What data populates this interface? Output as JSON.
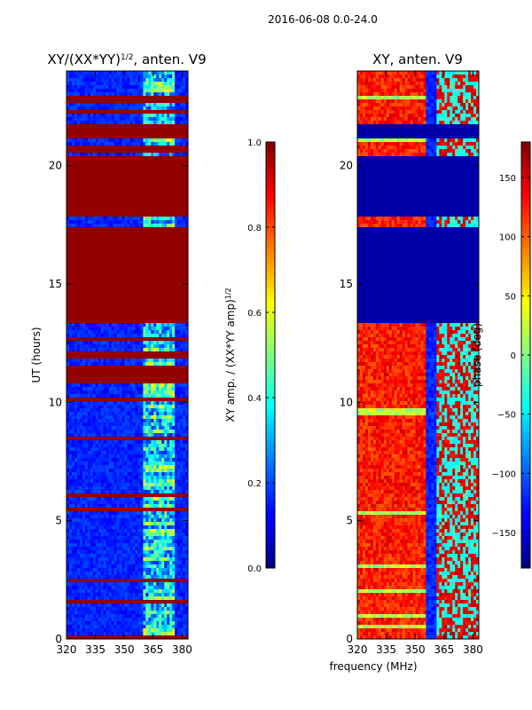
{
  "chart_data": [
    {
      "type": "heatmap",
      "suptitle": "2016-06-08 0.0-24.0",
      "title_main": "XY/(XX*YY)",
      "title_sup": "1/2",
      "title_rest": ", anten. V9",
      "xlabel": "",
      "ylabel": "UT (hours)",
      "xlim": [
        320,
        383
      ],
      "ylim": [
        0,
        24
      ],
      "x_ticks": [
        320,
        335,
        350,
        365,
        380
      ],
      "y_ticks": [
        0,
        5,
        10,
        15,
        20
      ],
      "x_tick_labels": [
        "320",
        "335",
        "350",
        "365",
        "380"
      ],
      "y_tick_labels": [
        "0",
        "5",
        "10",
        "15",
        "20"
      ],
      "saturated_bands_hours": [
        [
          0.0,
          0.15
        ],
        [
          13.4,
          17.4
        ],
        [
          17.8,
          20.4
        ],
        [
          20.6,
          20.8
        ],
        [
          21.2,
          21.8
        ],
        [
          22.2,
          22.4
        ],
        [
          22.6,
          22.9
        ],
        [
          10.8,
          11.6
        ],
        [
          11.9,
          12.2
        ],
        [
          12.6,
          12.7
        ],
        [
          10.0,
          10.15
        ],
        [
          8.4,
          8.5
        ],
        [
          6.0,
          6.1
        ],
        [
          5.4,
          5.5
        ],
        [
          2.4,
          2.5
        ],
        [
          1.5,
          1.6
        ]
      ],
      "colorbar": {
        "label_main": "XY amp. / (XX*YY amp)",
        "label_sup": "1/2",
        "range": [
          0.0,
          1.0
        ],
        "ticks": [
          0.0,
          0.2,
          0.4,
          0.6,
          0.8,
          1.0
        ],
        "tick_labels": [
          "0.0",
          "0.2",
          "0.4",
          "0.6",
          "0.8",
          "1.0"
        ]
      }
    },
    {
      "type": "heatmap",
      "title": "XY, anten. V9",
      "xlabel": "frequency (MHz)",
      "ylabel": "",
      "xlim": [
        320,
        383
      ],
      "ylim": [
        0,
        24
      ],
      "x_ticks": [
        320,
        335,
        350,
        365,
        380
      ],
      "y_ticks": [
        0,
        5,
        10,
        15,
        20
      ],
      "x_tick_labels": [
        "320",
        "335",
        "350",
        "365",
        "380"
      ],
      "y_tick_labels": [
        "0",
        "5",
        "10",
        "15",
        "20"
      ],
      "low_phase_bands_hours": [
        [
          13.4,
          17.4
        ],
        [
          17.8,
          20.4
        ],
        [
          21.2,
          21.8
        ]
      ],
      "colorbar": {
        "label": "phase (deg)",
        "range": [
          -180,
          180
        ],
        "ticks": [
          -150,
          -100,
          -50,
          0,
          50,
          100,
          150
        ],
        "tick_labels": [
          "−150",
          "−100",
          "−50",
          "0",
          "50",
          "100",
          "150"
        ]
      }
    }
  ]
}
